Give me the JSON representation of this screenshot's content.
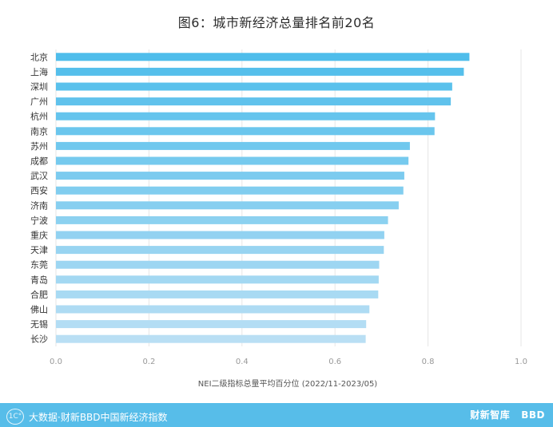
{
  "chart_data": {
    "type": "bar",
    "orientation": "horizontal",
    "title": "图6：城市新经济总量排名前20名",
    "xlabel": "NEI二级指标总量平均百分位 (2022/11-2023/05)",
    "ylabel": "",
    "xlim": [
      0,
      1.0
    ],
    "xticks": [
      0.0,
      0.2,
      0.4,
      0.6,
      0.8,
      1.0
    ],
    "xtick_labels": [
      "0.0",
      "0.2",
      "0.4",
      "0.6",
      "0.8",
      "1.0"
    ],
    "grid": true,
    "categories": [
      "北京",
      "上海",
      "深圳",
      "广州",
      "杭州",
      "南京",
      "苏州",
      "成都",
      "武汉",
      "西安",
      "济南",
      "宁波",
      "重庆",
      "天津",
      "东莞",
      "青岛",
      "合肥",
      "佛山",
      "无锡",
      "长沙"
    ],
    "values": [
      0.889,
      0.877,
      0.852,
      0.849,
      0.815,
      0.814,
      0.761,
      0.758,
      0.749,
      0.747,
      0.737,
      0.714,
      0.706,
      0.705,
      0.695,
      0.694,
      0.693,
      0.674,
      0.667,
      0.666
    ],
    "colors": {
      "gradient_start": "#4fbdeb",
      "gradient_end": "#b9dff4",
      "grid": "#e6e6e6",
      "axis_text": "#999999",
      "label_text": "#333333"
    }
  },
  "footer": {
    "logo_mark": "1C°",
    "brand_text": "大数据·财新BBD中国新经济指数",
    "right_logo_1": "财新智库",
    "right_logo_2": "BBD"
  }
}
